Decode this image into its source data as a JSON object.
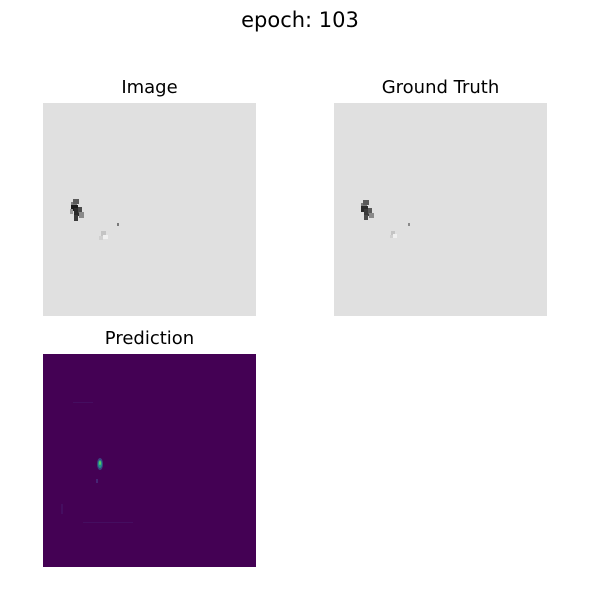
{
  "figure": {
    "suptitle": "epoch: 103"
  },
  "panels": [
    {
      "title": "Image",
      "colormap": "gray",
      "background": "#e0e0e0"
    },
    {
      "title": "Ground Truth",
      "colormap": "gray",
      "background": "#e0e0e0"
    },
    {
      "title": "Prediction",
      "colormap": "viridis",
      "background": "#440154"
    }
  ],
  "colors": {
    "page_background": "#ffffff",
    "gray_background": "#e0e0e0",
    "blob_dark": "#1a1a1a",
    "blob_mid": "#6e6e6e",
    "blob_light": "#b5b5b5",
    "viridis_low": "#440154",
    "viridis_mid": "#21918c",
    "viridis_high": "#5ec962"
  }
}
